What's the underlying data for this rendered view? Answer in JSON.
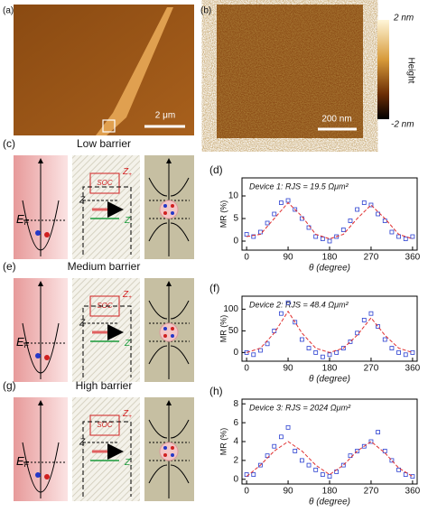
{
  "panels": {
    "a": {
      "label": "(a)",
      "scale": "2 μm"
    },
    "b": {
      "label": "(b)",
      "scale": "200 nm",
      "colorbar": {
        "max": "2 nm",
        "min": "-2 nm",
        "title": "Height"
      }
    },
    "diagrams": [
      {
        "label": "(c)",
        "title": "Low barrier"
      },
      {
        "label": "(e)",
        "title": "Medium barrier"
      },
      {
        "label": "(g)",
        "title": "High barrier"
      }
    ],
    "diagram_text": {
      "ef": [
        "E",
        "F"
      ],
      "soc": "SOC",
      "zplus": [
        "Z",
        "+"
      ],
      "z": "Z",
      "zminus": [
        "Z",
        "-"
      ]
    }
  },
  "chart_data": [
    {
      "type": "scatter",
      "panel": "(d)",
      "annotation": "Device 1: RJS = 19.5 Ωμm²",
      "x_label": "θ (degree)",
      "y_label": "MR (%)",
      "xlim": [
        -10,
        370
      ],
      "xticks": [
        0,
        90,
        180,
        270,
        360
      ],
      "ylim": [
        -2,
        14
      ],
      "yticks": [
        0,
        5,
        10
      ],
      "series": [
        {
          "mode": "markers",
          "color": "#2a3fd0",
          "x": [
            0,
            15,
            30,
            45,
            60,
            75,
            90,
            105,
            120,
            135,
            150,
            165,
            180,
            195,
            210,
            225,
            240,
            255,
            270,
            285,
            300,
            315,
            330,
            345,
            360
          ],
          "values": [
            1.5,
            1,
            2,
            4,
            6,
            8.5,
            9,
            7,
            5,
            3,
            1,
            0.5,
            0,
            1,
            2.5,
            4.5,
            7,
            8.5,
            8,
            6,
            4.5,
            2,
            1,
            0.5,
            1
          ]
        },
        {
          "mode": "dashed-line",
          "color": "#e03030",
          "x": [
            0,
            30,
            60,
            90,
            120,
            150,
            180,
            210,
            240,
            270,
            300,
            330,
            360
          ],
          "values": [
            1,
            1.5,
            5,
            8.5,
            5.5,
            1.5,
            0.5,
            1.5,
            5,
            8,
            5,
            1.5,
            0.5
          ]
        }
      ]
    },
    {
      "type": "scatter",
      "panel": "(f)",
      "annotation": "Device 2: RJS = 48.4 Ωμm²",
      "x_label": "θ (degree)",
      "y_label": "MR (%)",
      "xlim": [
        -10,
        370
      ],
      "xticks": [
        0,
        90,
        180,
        270,
        360
      ],
      "ylim": [
        -20,
        130
      ],
      "yticks": [
        0,
        50,
        100
      ],
      "series": [
        {
          "mode": "markers",
          "color": "#2a3fd0",
          "x": [
            0,
            15,
            30,
            45,
            60,
            75,
            90,
            105,
            120,
            135,
            150,
            165,
            180,
            195,
            210,
            225,
            240,
            255,
            270,
            285,
            300,
            315,
            330,
            345,
            360
          ],
          "values": [
            0,
            -5,
            5,
            20,
            50,
            90,
            115,
            70,
            30,
            10,
            0,
            -10,
            -5,
            0,
            10,
            25,
            45,
            75,
            90,
            60,
            30,
            10,
            0,
            -5,
            0
          ]
        },
        {
          "mode": "dashed-line",
          "color": "#e03030",
          "x": [
            0,
            30,
            60,
            90,
            120,
            150,
            180,
            210,
            240,
            270,
            300,
            330,
            360
          ],
          "values": [
            0,
            10,
            45,
            95,
            45,
            10,
            0,
            10,
            40,
            80,
            40,
            10,
            0
          ]
        }
      ]
    },
    {
      "type": "scatter",
      "panel": "(h)",
      "annotation": "Device 3: RJS = 2024 Ωμm²",
      "x_label": "θ (degree)",
      "y_label": "MR (%)",
      "xlim": [
        -10,
        370
      ],
      "xticks": [
        0,
        90,
        180,
        270,
        360
      ],
      "ylim": [
        -0.5,
        8.5
      ],
      "yticks": [
        0,
        2,
        4,
        6,
        8
      ],
      "series": [
        {
          "mode": "markers",
          "color": "#2a3fd0",
          "x": [
            0,
            15,
            30,
            45,
            60,
            75,
            90,
            105,
            120,
            135,
            150,
            165,
            180,
            195,
            210,
            225,
            240,
            255,
            270,
            285,
            300,
            315,
            330,
            345,
            360
          ],
          "values": [
            0.5,
            0.5,
            1.5,
            2.5,
            3.5,
            4.5,
            5.5,
            3,
            2,
            1.5,
            1,
            0.5,
            0.3,
            0.8,
            1.5,
            2.5,
            3,
            3.5,
            4,
            5,
            3,
            2,
            1,
            0.5,
            0.3
          ]
        },
        {
          "mode": "dashed-line",
          "color": "#e03030",
          "x": [
            0,
            30,
            60,
            90,
            120,
            150,
            180,
            210,
            240,
            270,
            300,
            330,
            360
          ],
          "values": [
            0.3,
            1.5,
            3,
            4,
            3,
            1.5,
            0.5,
            1.5,
            3,
            4,
            2.8,
            1.2,
            0.3
          ]
        }
      ]
    }
  ]
}
